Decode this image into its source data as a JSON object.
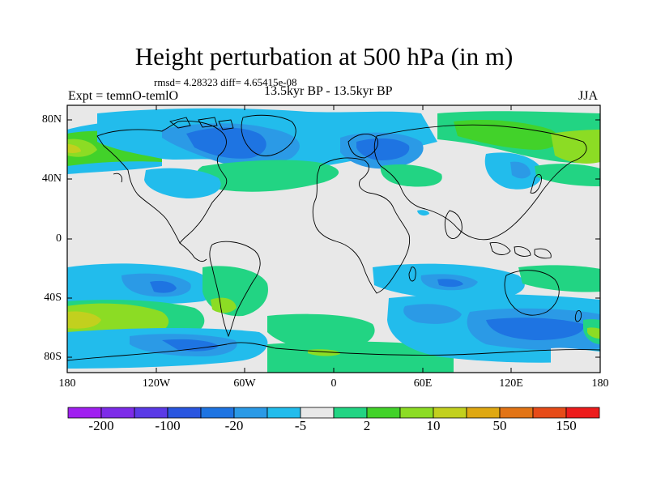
{
  "title": "Height perturbation at 500 hPa (in m)",
  "stats": "rmsd= 4.28323 diff= 4.65415e-08",
  "left_label": "Expt = temnO-temlO",
  "center_label": "13.5kyr BP - 13.5kyr BP",
  "right_label": "JJA",
  "lat_labels": [
    "80N",
    "40N",
    "0",
    "40S",
    "80S"
  ],
  "lon_labels": [
    "180",
    "120W",
    "60W",
    "0",
    "60E",
    "120E",
    "180"
  ],
  "colorbar_labels": [
    "-200",
    "-100",
    "-20",
    "-5",
    "2",
    "10",
    "50",
    "150"
  ],
  "colorbar_colors": [
    "#a020f0",
    "#7d2ce8",
    "#5a3ae6",
    "#2a56e0",
    "#1e74e2",
    "#2b9ae6",
    "#22bcec",
    "#e8e8e8",
    "#22d483",
    "#42d22a",
    "#8cdc24",
    "#c2d01e",
    "#dfa812",
    "#e27415",
    "#e64b18",
    "#ed1c1c"
  ],
  "colors": {
    "neutral": "#e8e8e8",
    "cyan": "#22bcec",
    "blue_light": "#2b9ae6",
    "blue_mid": "#1e74e2",
    "blue_dark": "#2a56e0",
    "green_light": "#22d483",
    "green": "#42d22a",
    "yellow_green": "#8cdc24",
    "olive": "#c2d01e"
  }
}
